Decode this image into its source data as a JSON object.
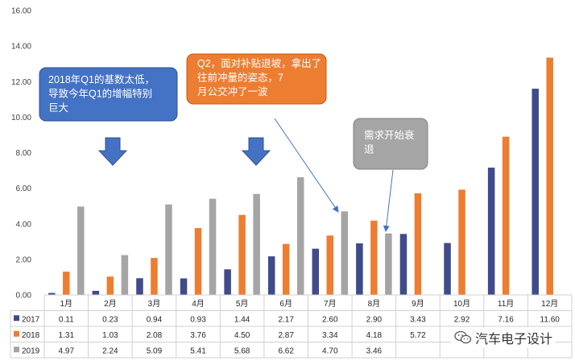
{
  "chart_data": {
    "type": "bar",
    "categories": [
      "1月",
      "2月",
      "3月",
      "4月",
      "5月",
      "6月",
      "7月",
      "8月",
      "9月",
      "10月",
      "11月",
      "12月"
    ],
    "series": [
      {
        "name": "2017",
        "color": "#3f4b8b",
        "values": [
          0.11,
          0.23,
          0.94,
          0.93,
          1.44,
          2.17,
          2.6,
          2.9,
          3.43,
          2.92,
          7.16,
          11.6
        ]
      },
      {
        "name": "2018",
        "color": "#ed7d31",
        "values": [
          1.31,
          1.03,
          2.08,
          3.76,
          4.5,
          2.87,
          3.34,
          4.18,
          5.72,
          5.92,
          8.9,
          13.35
        ]
      },
      {
        "name": "2019",
        "color": "#a5a5a5",
        "values": [
          4.97,
          2.24,
          5.09,
          5.41,
          5.68,
          6.62,
          4.7,
          3.46,
          null,
          null,
          null,
          null
        ]
      }
    ],
    "table_rows": [
      {
        "label": "2017",
        "cells": [
          "0.11",
          "0.23",
          "0.94",
          "0.93",
          "1.44",
          "2.17",
          "2.60",
          "2.90",
          "3.43",
          "2.92",
          "7.16",
          "11.60"
        ]
      },
      {
        "label": "2018",
        "cells": [
          "1.31",
          "1.03",
          "2.08",
          "3.76",
          "4.50",
          "2.87",
          "3.34",
          "4.18",
          "5.72",
          "",
          "",
          ""
        ]
      },
      {
        "label": "2019",
        "cells": [
          "4.97",
          "2.24",
          "5.09",
          "5.41",
          "5.68",
          "6.62",
          "4.70",
          "3.46",
          "",
          "",
          "",
          ""
        ]
      }
    ],
    "ylim": [
      0,
      16
    ],
    "yticks": [
      "0.00",
      "2.00",
      "4.00",
      "6.00",
      "8.00",
      "10.00",
      "12.00",
      "14.00",
      "16.00"
    ],
    "grid": false,
    "legend": "data-table",
    "annotations": [
      {
        "text": "2018年Q1的基数太低，导致今年Q1的增幅特别巨大",
        "style": "blue"
      },
      {
        "text": "Q2，面对补贴退坡，拿出了往前冲量的姿态，7月公交冲了一波",
        "style": "orange"
      },
      {
        "text": "需求开始衰退",
        "style": "gray"
      }
    ]
  },
  "watermark": {
    "text": "汽车电子设计",
    "icon": "wechat-icon"
  }
}
